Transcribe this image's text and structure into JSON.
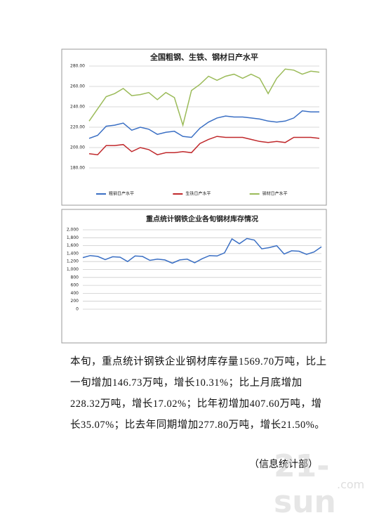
{
  "chart_data": [
    {
      "type": "line",
      "title": "全国粗钢、生铁、钢材日产水平",
      "categories": [
        null,
        null,
        null,
        null,
        null,
        null,
        null,
        null,
        null,
        null,
        null,
        null,
        null,
        null,
        null,
        null,
        null,
        null,
        null,
        null,
        null,
        null,
        null,
        null,
        null,
        null,
        null,
        null
      ],
      "series": [
        {
          "name": "粗钢日产水平",
          "color": "#3a6fc4",
          "values": [
            209,
            212,
            221,
            222,
            224,
            217,
            220,
            218,
            213,
            215,
            216,
            211,
            210,
            219,
            225,
            229,
            231,
            230,
            230,
            229,
            228,
            226,
            225,
            226,
            229,
            236,
            235,
            235
          ]
        },
        {
          "name": "生铁日产水平",
          "color": "#c0282b",
          "values": [
            194,
            193,
            202,
            202,
            203,
            196,
            200,
            198,
            193,
            195,
            195,
            196,
            195,
            204,
            208,
            211,
            210,
            210,
            210,
            208,
            206,
            205,
            206,
            205,
            210,
            210,
            210,
            209
          ]
        },
        {
          "name": "钢材日产水平",
          "color": "#9bbb59",
          "values": [
            226,
            238,
            250,
            253,
            258,
            251,
            252,
            254,
            247,
            254,
            249,
            222,
            256,
            262,
            270,
            266,
            270,
            272,
            268,
            272,
            268,
            253,
            268,
            277,
            276,
            272,
            275,
            274
          ]
        }
      ],
      "ylim": [
        180,
        280
      ],
      "yticks": [
        {
          "value": 180,
          "label": "180.00"
        },
        {
          "value": 200,
          "label": "200.00"
        },
        {
          "value": 220,
          "label": "220.00"
        },
        {
          "value": 240,
          "label": "240.00"
        },
        {
          "value": 260,
          "label": "260.00"
        },
        {
          "value": 280,
          "label": "280.00"
        }
      ],
      "grid": true,
      "legend": "bottom"
    },
    {
      "type": "line",
      "title": "重点统计钢铁企业各旬钢材库存情况",
      "categories": [
        null,
        null,
        null,
        null,
        null,
        null,
        null,
        null,
        null,
        null,
        null,
        null,
        null,
        null,
        null,
        null,
        null,
        null,
        null,
        null,
        null,
        null,
        null,
        null,
        null,
        null,
        null,
        null,
        null,
        null,
        null,
        null,
        null
      ],
      "values": [
        1300,
        1350,
        1330,
        1250,
        1320,
        1310,
        1200,
        1340,
        1330,
        1230,
        1260,
        1240,
        1160,
        1240,
        1260,
        1170,
        1270,
        1350,
        1340,
        1420,
        1770,
        1650,
        1780,
        1740,
        1520,
        1550,
        1600,
        1390,
        1470,
        1460,
        1380,
        1440,
        1570
      ],
      "color": "#3a6fc4",
      "ylim": [
        0,
        2000
      ],
      "yticks": [
        0,
        200,
        400,
        600,
        800,
        {
          "value": 1000,
          "label": "1,000"
        },
        {
          "value": 1200,
          "label": "1,200"
        },
        {
          "value": 1400,
          "label": "1,400"
        },
        {
          "value": 1600,
          "label": "1,600"
        },
        {
          "value": 1800,
          "label": "1,800"
        },
        {
          "value": 2000,
          "label": "2,000"
        }
      ],
      "grid": true
    }
  ],
  "body": {
    "paragraph": "本旬，重点统计钢铁企业钢材库存量1569.70万吨，比上一旬增加146.73万吨，增长10.31%；比上月底增加228.32万吨，增长17.02%；比年初增加407.60万吨，增长35.07%；比去年同期增加277.80万吨，增长21.50%。",
    "source": "（信息统计部）"
  },
  "watermark": {
    "logo": "21-sun",
    "domain": ".com"
  }
}
